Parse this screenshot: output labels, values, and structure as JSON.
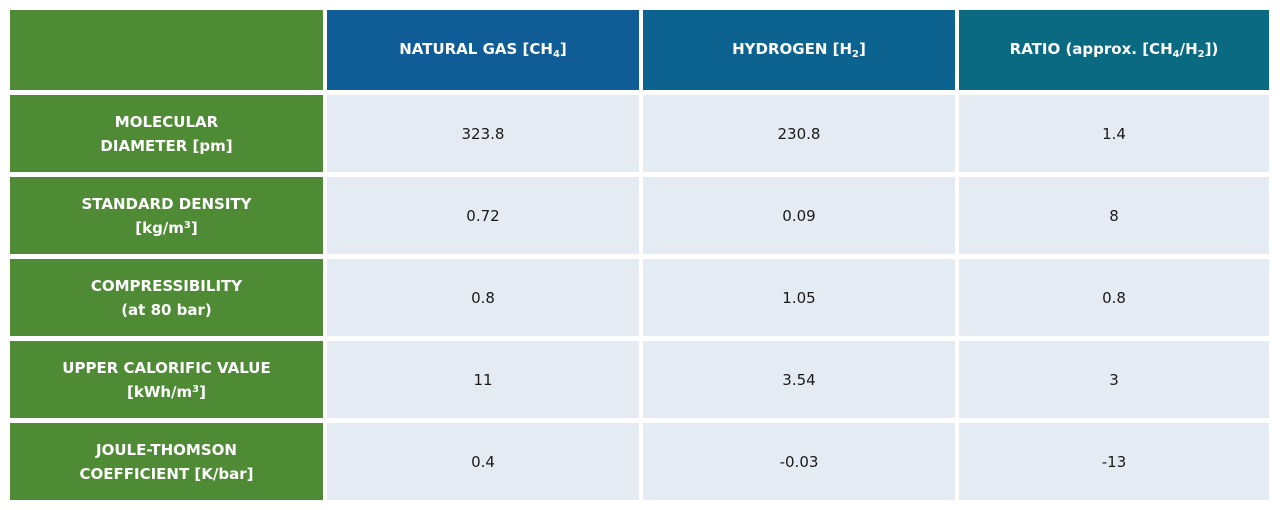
{
  "header": {
    "ng_prefix": "NATURAL GAS [CH",
    "ng_sub": "4",
    "ng_suffix": "]",
    "h_prefix": "HYDROGEN [H",
    "h_sub": "2",
    "h_suffix": "]",
    "ratio_prefix": "RATIO (approx. [CH",
    "ratio_sub1": "4",
    "ratio_mid": "/H",
    "ratio_sub2": "2",
    "ratio_suffix": "])"
  },
  "rows": [
    {
      "label_line1": "MOLECULAR",
      "label_line2": "DIAMETER [pm]",
      "natural_gas": "323.8",
      "hydrogen": "230.8",
      "ratio": "1.4"
    },
    {
      "label_line1": "STANDARD DENSITY",
      "label_line2_prefix": "[kg/m",
      "label_line2_sup": "3",
      "label_line2_suffix": "]",
      "natural_gas": "0.72",
      "hydrogen": "0.09",
      "ratio": "8"
    },
    {
      "label_line1": "COMPRESSIBILITY",
      "label_line2": "(at 80 bar)",
      "natural_gas": "0.8",
      "hydrogen": "1.05",
      "ratio": "0.8"
    },
    {
      "label_line1": "UPPER CALORIFIC VALUE",
      "label_line2_prefix": "[kWh/m",
      "label_line2_sup": "3",
      "label_line2_suffix": "]",
      "natural_gas": "11",
      "hydrogen": "3.54",
      "ratio": "3"
    },
    {
      "label_line1": "JOULE-THOMSON",
      "label_line2": "COEFFICIENT [K/bar]",
      "natural_gas": "0.4",
      "hydrogen": "-0.03",
      "ratio": "-13"
    }
  ],
  "colors": {
    "row_header_green": "#4f8a35",
    "header_blue": "#0f5c96",
    "header_teal": "#096a82",
    "value_cell_bg": "#e4ebf2"
  }
}
